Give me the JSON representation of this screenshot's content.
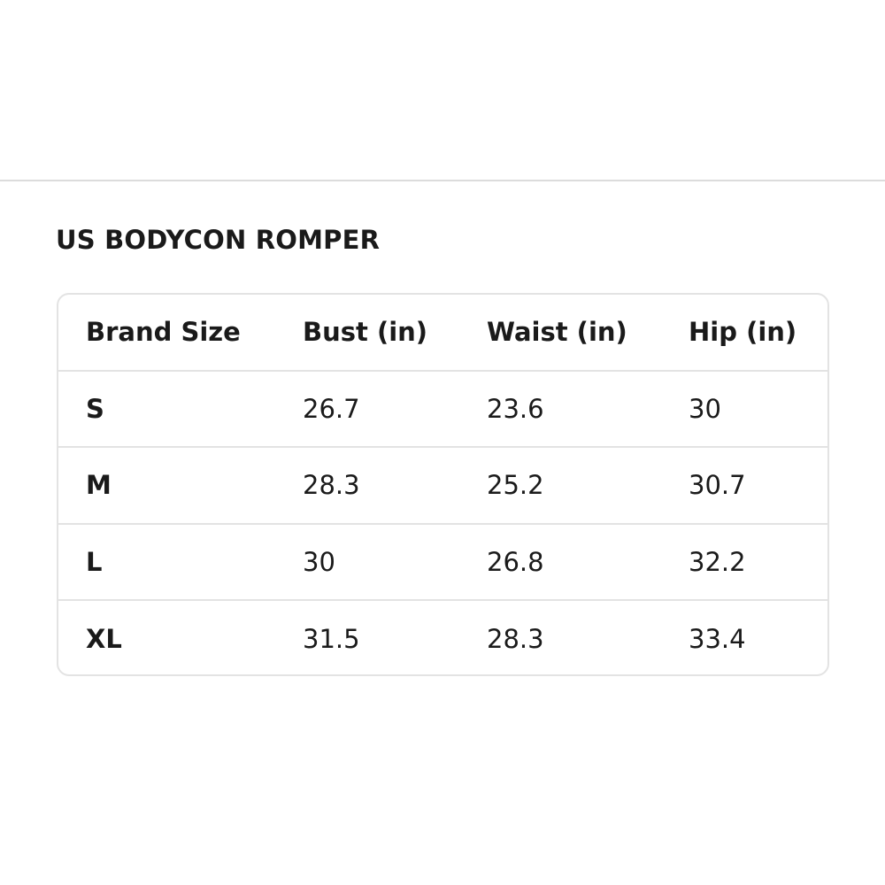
{
  "title": "US BODYCON ROMPER",
  "table": {
    "headers": [
      "Brand Size",
      "Bust (in)",
      "Waist (in)",
      "Hip (in)"
    ],
    "rows": [
      [
        "S",
        "26.7",
        "23.6",
        "30"
      ],
      [
        "M",
        "28.3",
        "25.2",
        "30.7"
      ],
      [
        "L",
        "30",
        "26.8",
        "32.2"
      ],
      [
        "XL",
        "31.5",
        "28.3",
        "33.4"
      ]
    ]
  },
  "colors": {
    "border": "#e3e3e3",
    "text": "#1a1a1a"
  }
}
